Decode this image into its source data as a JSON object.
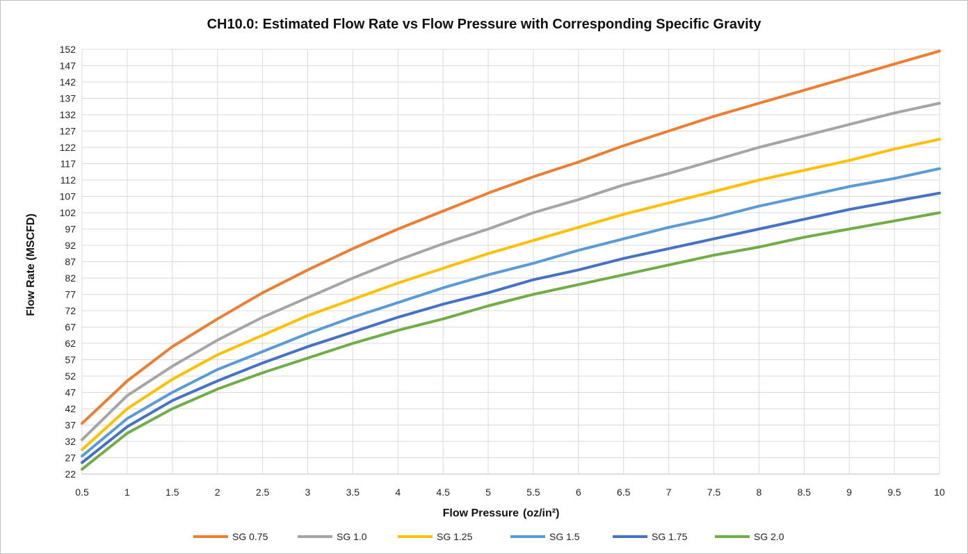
{
  "chart_data": {
    "type": "line",
    "title": "CH10.0: Estimated Flow Rate vs Flow Pressure with Corresponding Specific Gravity",
    "xlabel_main": "Flow  Pressure",
    "xlabel_unit": "(oz/in²)",
    "ylabel": "Flow  Rate (MSCFD)",
    "xlim": [
      0.5,
      10
    ],
    "ylim": [
      22,
      152
    ],
    "x_ticks": [
      "0.5",
      "1",
      "1.5",
      "2",
      "2.5",
      "3",
      "3.5",
      "4",
      "4.5",
      "5",
      "5.5",
      "6",
      "6.5",
      "7",
      "7.5",
      "8",
      "8.5",
      "9",
      "9.5",
      "10"
    ],
    "y_ticks": [
      "22",
      "27",
      "32",
      "37",
      "42",
      "47",
      "52",
      "57",
      "62",
      "67",
      "72",
      "77",
      "82",
      "87",
      "92",
      "97",
      "102",
      "107",
      "112",
      "117",
      "122",
      "127",
      "132",
      "137",
      "142",
      "147",
      "152"
    ],
    "grid": true,
    "legend_position": "bottom",
    "x": [
      0.5,
      1,
      1.5,
      2,
      2.5,
      3,
      3.5,
      4,
      4.5,
      5,
      5.5,
      6,
      6.5,
      7,
      7.5,
      8,
      8.5,
      9,
      9.5,
      10
    ],
    "series": [
      {
        "name": "SG 0.75",
        "color": "#ed7d31",
        "values": [
          37.5,
          50.5,
          61,
          69.5,
          77.5,
          84.5,
          91,
          97,
          102.5,
          108,
          113,
          117.5,
          122.5,
          127,
          131.5,
          135.5,
          139.5,
          143.5,
          147.5,
          151.5
        ]
      },
      {
        "name": "SG 1.0",
        "color": "#a5a5a5",
        "values": [
          32.5,
          46,
          55,
          63,
          70,
          76,
          82,
          87.5,
          92.5,
          97,
          102,
          106,
          110.5,
          114,
          118,
          122,
          125.5,
          129,
          132.5,
          135.5
        ]
      },
      {
        "name": "SG 1.25",
        "color": "#ffc000",
        "values": [
          29.5,
          42,
          51,
          58.5,
          64.5,
          70.5,
          75.5,
          80.5,
          85,
          89.5,
          93.5,
          97.5,
          101.5,
          105,
          108.5,
          112,
          115,
          118,
          121.5,
          124.5
        ]
      },
      {
        "name": "SG 1.5",
        "color": "#5b9bd5",
        "values": [
          27.5,
          39,
          47,
          54,
          59.5,
          65,
          70,
          74.5,
          79,
          83,
          86.5,
          90.5,
          94,
          97.5,
          100.5,
          104,
          107,
          110,
          112.5,
          115.5
        ]
      },
      {
        "name": "SG 1.75",
        "color": "#4472c4",
        "values": [
          25.5,
          36.5,
          44.5,
          50.5,
          56,
          61,
          65.5,
          70,
          74,
          77.5,
          81.5,
          84.5,
          88,
          91,
          94,
          97,
          100,
          103,
          105.5,
          108
        ]
      },
      {
        "name": "SG 2.0",
        "color": "#70ad47",
        "values": [
          23.5,
          34.5,
          42,
          48,
          53,
          57.5,
          62,
          66,
          69.5,
          73.5,
          77,
          80,
          83,
          86,
          89,
          91.5,
          94.5,
          97,
          99.5,
          102
        ]
      }
    ]
  }
}
